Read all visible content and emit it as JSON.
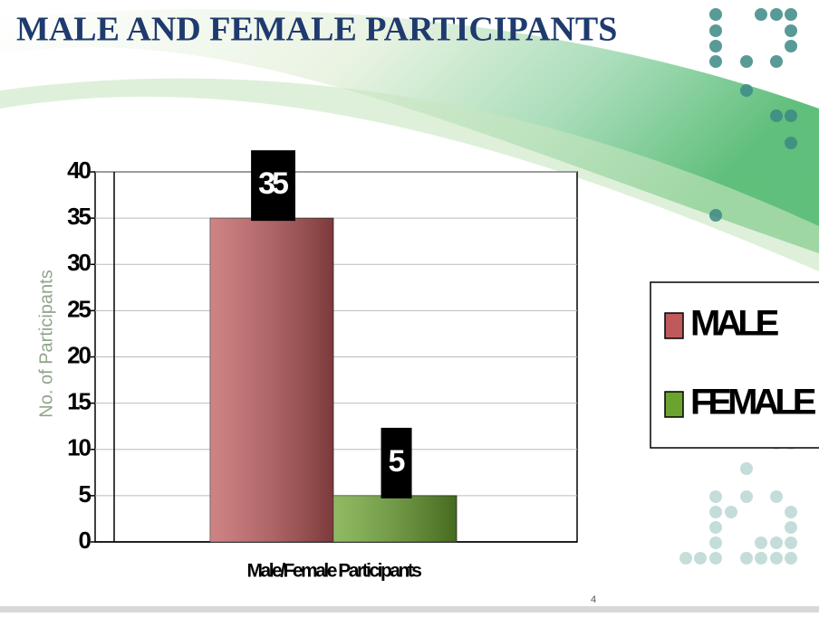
{
  "chart_data": {
    "type": "bar",
    "title": "MALE AND FEMALE PARTICIPANTS",
    "y_label": "No. of Participants",
    "categories": [
      "Male/Female Participants"
    ],
    "series": [
      {
        "name": "MALE",
        "color": "#c0595b",
        "values": [
          35
        ]
      },
      {
        "name": "FEMALE",
        "color": "#6aa32e",
        "values": [
          5
        ]
      }
    ],
    "ylim": [
      0,
      40
    ],
    "yticks": [
      0,
      5,
      10,
      15,
      20,
      25,
      30,
      35,
      40
    ],
    "grid": true,
    "legend": "right",
    "page_number": "4"
  }
}
